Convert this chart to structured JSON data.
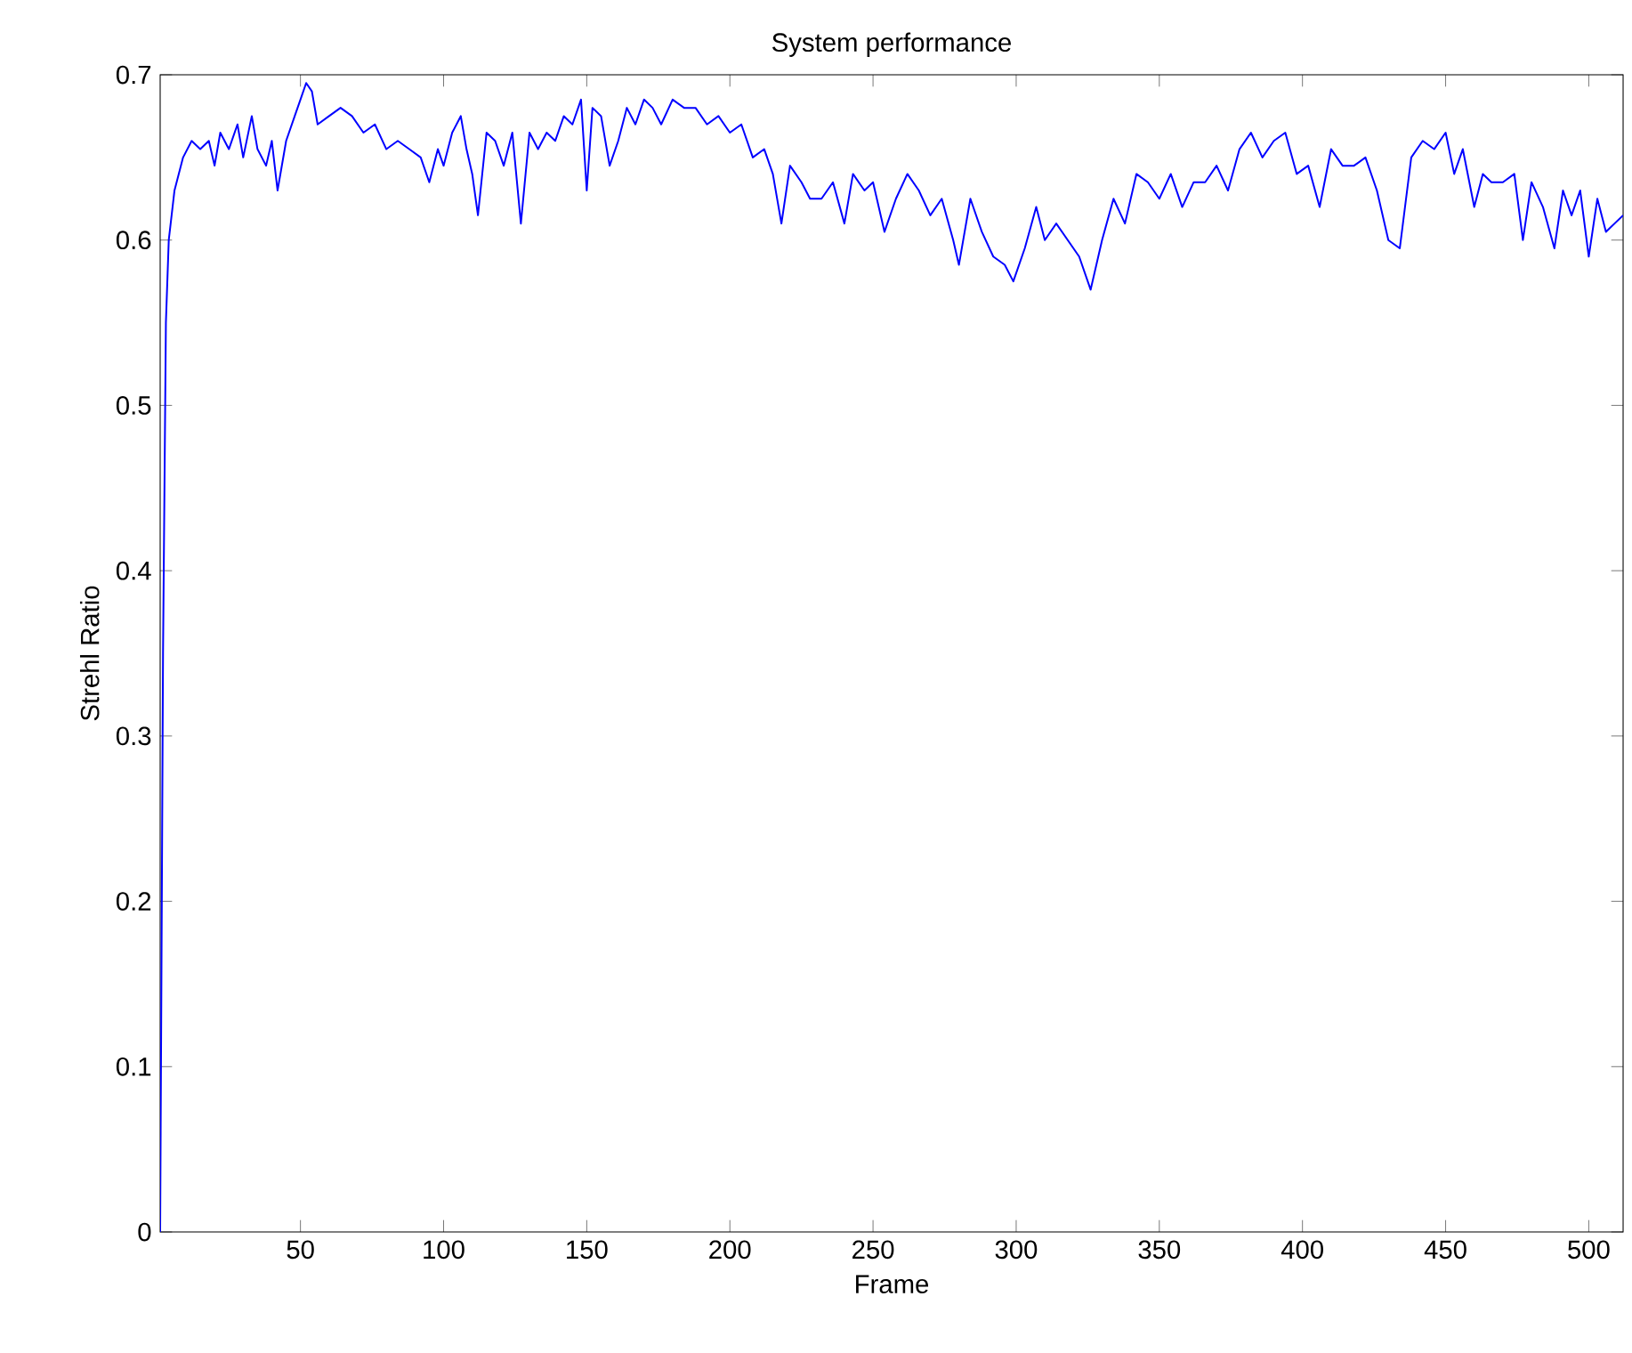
{
  "chart_data": {
    "type": "line",
    "title": "System performance",
    "xlabel": "Frame",
    "ylabel": "Strehl Ratio",
    "xlim": [
      1,
      512
    ],
    "ylim": [
      0,
      0.7
    ],
    "xticks": [
      50,
      100,
      150,
      200,
      250,
      300,
      350,
      400,
      450,
      500
    ],
    "yticks": [
      0,
      0.1,
      0.2,
      0.3,
      0.4,
      0.5,
      0.6,
      0.7
    ],
    "series": [
      {
        "color": "#0000ff",
        "x": [
          1,
          2,
          3,
          4,
          6,
          9,
          12,
          15,
          18,
          20,
          22,
          25,
          28,
          30,
          33,
          35,
          38,
          40,
          42,
          45,
          48,
          50,
          52,
          54,
          56,
          60,
          64,
          68,
          72,
          76,
          80,
          84,
          88,
          92,
          95,
          98,
          100,
          103,
          106,
          108,
          110,
          112,
          115,
          118,
          121,
          124,
          127,
          130,
          133,
          136,
          139,
          142,
          145,
          148,
          150,
          152,
          155,
          158,
          161,
          164,
          167,
          170,
          173,
          176,
          180,
          184,
          188,
          192,
          196,
          200,
          204,
          208,
          212,
          215,
          218,
          221,
          225,
          228,
          232,
          236,
          240,
          243,
          247,
          250,
          254,
          258,
          262,
          266,
          270,
          274,
          278,
          280,
          284,
          288,
          292,
          296,
          299,
          303,
          307,
          310,
          314,
          318,
          322,
          326,
          330,
          334,
          338,
          342,
          346,
          350,
          354,
          358,
          362,
          366,
          370,
          374,
          378,
          382,
          386,
          390,
          394,
          398,
          402,
          406,
          410,
          414,
          418,
          422,
          426,
          430,
          434,
          438,
          442,
          446,
          450,
          453,
          456,
          460,
          463,
          466,
          470,
          474,
          477,
          480,
          484,
          488,
          491,
          494,
          497,
          500,
          503,
          506,
          509,
          512
        ],
        "values": [
          0,
          0.35,
          0.55,
          0.6,
          0.63,
          0.65,
          0.66,
          0.655,
          0.66,
          0.645,
          0.665,
          0.655,
          0.67,
          0.65,
          0.675,
          0.655,
          0.645,
          0.66,
          0.63,
          0.66,
          0.675,
          0.685,
          0.695,
          0.69,
          0.67,
          0.675,
          0.68,
          0.675,
          0.665,
          0.67,
          0.655,
          0.66,
          0.655,
          0.65,
          0.635,
          0.655,
          0.645,
          0.665,
          0.675,
          0.655,
          0.64,
          0.615,
          0.665,
          0.66,
          0.645,
          0.665,
          0.61,
          0.665,
          0.655,
          0.665,
          0.66,
          0.675,
          0.67,
          0.685,
          0.63,
          0.68,
          0.675,
          0.645,
          0.66,
          0.68,
          0.67,
          0.685,
          0.68,
          0.67,
          0.685,
          0.68,
          0.68,
          0.67,
          0.675,
          0.665,
          0.67,
          0.65,
          0.655,
          0.64,
          0.61,
          0.645,
          0.635,
          0.625,
          0.625,
          0.635,
          0.61,
          0.64,
          0.63,
          0.635,
          0.605,
          0.625,
          0.64,
          0.63,
          0.615,
          0.625,
          0.6,
          0.585,
          0.625,
          0.605,
          0.59,
          0.585,
          0.575,
          0.595,
          0.62,
          0.6,
          0.61,
          0.6,
          0.59,
          0.57,
          0.6,
          0.625,
          0.61,
          0.64,
          0.635,
          0.625,
          0.64,
          0.62,
          0.635,
          0.635,
          0.645,
          0.63,
          0.655,
          0.665,
          0.65,
          0.66,
          0.665,
          0.64,
          0.645,
          0.62,
          0.655,
          0.645,
          0.645,
          0.65,
          0.63,
          0.6,
          0.595,
          0.65,
          0.66,
          0.655,
          0.665,
          0.64,
          0.655,
          0.62,
          0.64,
          0.635,
          0.635,
          0.64,
          0.6,
          0.635,
          0.62,
          0.595,
          0.63,
          0.615,
          0.63,
          0.59,
          0.625,
          0.605,
          0.61,
          0.615
        ]
      }
    ]
  }
}
